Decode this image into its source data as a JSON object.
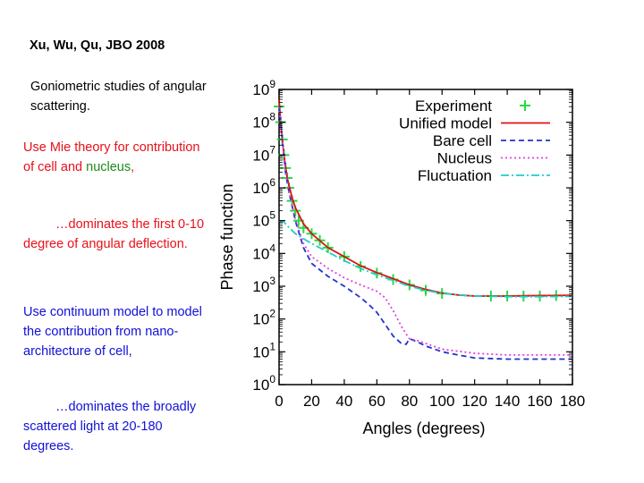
{
  "slide": {
    "title": "Xu, Wu, Qu, JBO 2008",
    "intro": "Goniometric studies of angular scattering.",
    "mie_prefix": "Use Mie theory for contribution of cell and ",
    "mie_green": "nucleus",
    "mie_suffix": ",",
    "mie_dominates": "…dominates the first 0-10 degree of angular deflection.",
    "continuum": "Use continuum model to model the contribution from nano-architecture of cell,",
    "continuum_dominates": "…dominates the broadly scattered light  at 20-180 degrees."
  },
  "chart_data": {
    "type": "line",
    "xlabel": "Angles (degrees)",
    "ylabel": "Phase function",
    "xlim": [
      0,
      180
    ],
    "ylim_log10": [
      0,
      9
    ],
    "log_y": true,
    "x_ticks": [
      "0",
      "20",
      "40",
      "60",
      "80",
      "100",
      "120",
      "140",
      "160",
      "180"
    ],
    "y_ticks": [
      "10^0",
      "10^1",
      "10^2",
      "10^3",
      "10^4",
      "10^5",
      "10^6",
      "10^7",
      "10^8",
      "10^9"
    ],
    "legend_position": "top-right",
    "series": [
      {
        "name": "Experiment",
        "style": "points",
        "color": "#22dd44",
        "x": [
          0,
          1,
          2,
          3,
          4,
          5,
          6,
          8,
          10,
          12,
          15,
          20,
          25,
          30,
          40,
          50,
          60,
          70,
          80,
          90,
          100,
          130,
          140,
          150,
          160,
          170
        ],
        "y": [
          300000000,
          100000000,
          30000000,
          10000000,
          4000000,
          2000000,
          1000000,
          400000,
          200000,
          100000,
          60000,
          40000,
          25000,
          15000,
          8000,
          4000,
          2500,
          1600,
          1100,
          750,
          600,
          500,
          500,
          500,
          500,
          520
        ]
      },
      {
        "name": "Unified model",
        "style": "solid",
        "color": "#dd1111",
        "x": [
          0,
          1,
          2,
          3,
          5,
          8,
          10,
          15,
          20,
          30,
          40,
          50,
          60,
          70,
          80,
          90,
          100,
          110,
          120,
          130,
          140,
          150,
          160,
          170,
          180
        ],
        "y": [
          500000000,
          100000000,
          30000000,
          10000000,
          2000000,
          500000,
          250000,
          80000,
          40000,
          15000,
          8000,
          4200,
          2600,
          1700,
          1100,
          800,
          620,
          540,
          500,
          500,
          500,
          510,
          520,
          520,
          530
        ]
      },
      {
        "name": "Bare cell",
        "style": "dashed",
        "color": "#2233cc",
        "x": [
          0,
          2,
          4,
          6,
          10,
          15,
          20,
          30,
          40,
          50,
          55,
          60,
          65,
          70,
          75,
          78,
          80,
          85,
          90,
          100,
          110,
          120,
          140,
          160,
          180
        ],
        "y": [
          300000000,
          30000000,
          3000000,
          800000,
          100000,
          15000,
          5000,
          2000,
          1000,
          450,
          280,
          160,
          70,
          30,
          18,
          17,
          25,
          20,
          15,
          10,
          8,
          6.5,
          6,
          6,
          6
        ]
      },
      {
        "name": "Nucleus",
        "style": "dotted",
        "color": "#e040e0",
        "x": [
          0,
          2,
          4,
          6,
          10,
          15,
          20,
          30,
          40,
          50,
          60,
          65,
          70,
          75,
          78,
          80,
          85,
          90,
          100,
          120,
          140,
          160,
          180
        ],
        "y": [
          300000000,
          30000000,
          3000000,
          800000,
          110000,
          20000,
          8000,
          3500,
          1800,
          1100,
          700,
          450,
          180,
          60,
          35,
          25,
          22,
          18,
          12,
          9,
          8,
          8,
          8
        ]
      },
      {
        "name": "Fluctuation",
        "style": "dashdot",
        "color": "#22cccc",
        "x": [
          0,
          3,
          5,
          8,
          10,
          15,
          20,
          30,
          40,
          50,
          60,
          70,
          80,
          90,
          100,
          120,
          140,
          160,
          180
        ],
        "y": [
          100000,
          90000,
          70000,
          50000,
          40000,
          28000,
          20000,
          11000,
          6000,
          3500,
          2200,
          1500,
          1000,
          750,
          600,
          500,
          480,
          480,
          490
        ]
      }
    ]
  }
}
